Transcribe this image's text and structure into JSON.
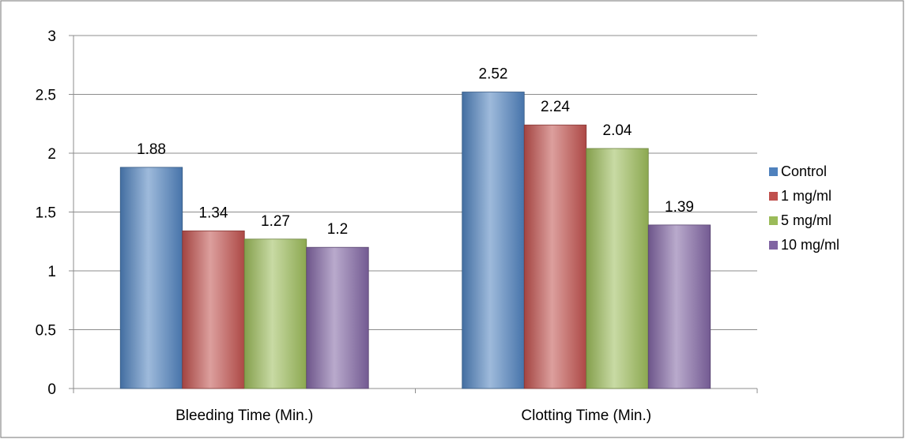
{
  "chart_data": {
    "type": "bar",
    "title": "",
    "xlabel": "",
    "ylabel": "",
    "categories": [
      "Bleeding Time (Min.)",
      "Clotting Time (Min.)"
    ],
    "series": [
      {
        "name": "Control",
        "values": [
          1.88,
          2.52
        ],
        "color": "#4F81BD"
      },
      {
        "name": "1 mg/ml",
        "values": [
          1.34,
          2.24
        ],
        "color": "#C0504D"
      },
      {
        "name": "5 mg/ml",
        "values": [
          1.27,
          2.04
        ],
        "color": "#9BBB59"
      },
      {
        "name": "10 mg/ml",
        "values": [
          1.2,
          1.39
        ],
        "color": "#8064A2"
      }
    ],
    "data_labels": [
      [
        "1.88",
        "2.52"
      ],
      [
        "1.34",
        "2.24"
      ],
      [
        "1.27",
        "2.04"
      ],
      [
        "1.2",
        "1.39"
      ]
    ],
    "ylim": [
      0,
      3
    ],
    "yticks": [
      0,
      0.5,
      1,
      1.5,
      2,
      2.5,
      3
    ],
    "ytick_labels": [
      "0",
      "0.5",
      "1",
      "1.5",
      "2",
      "2.5",
      "3"
    ],
    "grid": true,
    "legend_position": "right"
  }
}
